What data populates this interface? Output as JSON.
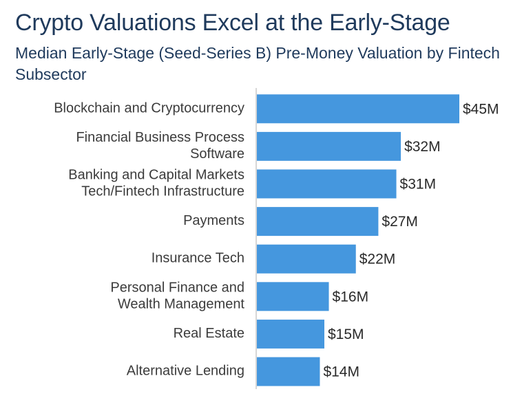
{
  "chart_data": {
    "type": "bar",
    "orientation": "horizontal",
    "title": "Crypto Valuations Excel at the Early-Stage",
    "subtitle": "Median Early-Stage (Seed-Series B) Pre-Money Valuation by Fintech Subsector",
    "categories": [
      [
        "Blockchain and Cryptocurrency"
      ],
      [
        "Financial Business Process",
        "Software"
      ],
      [
        "Banking and Capital Markets",
        "Tech/Fintech Infrastructure"
      ],
      [
        "Payments"
      ],
      [
        "Insurance Tech"
      ],
      [
        "Personal Finance and",
        "Wealth Management"
      ],
      [
        "Real Estate"
      ],
      [
        "Alternative Lending"
      ]
    ],
    "values": [
      45,
      32,
      31,
      27,
      22,
      16,
      15,
      14
    ],
    "value_labels": [
      "$45M",
      "$32M",
      "$31M",
      "$27M",
      "$22M",
      "$16M",
      "$15M",
      "$14M"
    ],
    "unit": "$M",
    "xlim": [
      0,
      45
    ],
    "bar_color": "#4597de",
    "axis_color": "#c8c8c8",
    "grid": false,
    "legend": "none"
  }
}
